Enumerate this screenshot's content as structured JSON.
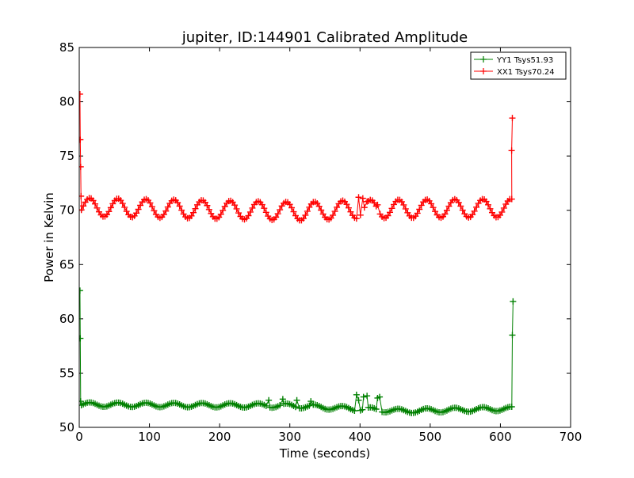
{
  "chart_data": {
    "type": "line",
    "title": "jupiter, ID:144901 Calibrated Amplitude",
    "xlabel": "Time (seconds)",
    "ylabel": "Power in Kelvin",
    "xlim": [
      0,
      700
    ],
    "ylim": [
      50,
      85
    ],
    "xticks": [
      0,
      100,
      200,
      300,
      400,
      500,
      600,
      700
    ],
    "xtick_labels": [
      "0",
      "100",
      "200",
      "300",
      "400",
      "500",
      "600",
      "700"
    ],
    "yticks": [
      50,
      55,
      60,
      65,
      70,
      75,
      80,
      85
    ],
    "ytick_labels": [
      "50",
      "55",
      "60",
      "65",
      "70",
      "75",
      "80",
      "85"
    ],
    "grid": false,
    "legend_position": "top-right",
    "series": [
      {
        "name": "YY1 Tsys51.93",
        "color": "#008000",
        "marker": "+",
        "baseline": 52.0,
        "oscillation_amplitude": 0.2,
        "oscillation_period": 40,
        "start_x": 3,
        "end_x": 618,
        "step": 2.8,
        "start_points": [
          [
            1,
            62.6
          ],
          [
            1.5,
            58.2
          ],
          [
            2,
            52.4
          ]
        ],
        "end_points": [
          [
            617,
            58.5
          ],
          [
            618,
            61.6
          ]
        ],
        "trend": [
          [
            0,
            52.1
          ],
          [
            300,
            52.0
          ],
          [
            460,
            51.5
          ],
          [
            600,
            51.7
          ]
        ],
        "spikes": [
          [
            270,
            52.5
          ],
          [
            290,
            52.6
          ],
          [
            310,
            52.5
          ],
          [
            330,
            52.4
          ],
          [
            395,
            53.0
          ],
          [
            398,
            52.5
          ],
          [
            405,
            52.8
          ],
          [
            410,
            52.9
          ],
          [
            425,
            52.7
          ],
          [
            428,
            52.8
          ]
        ]
      },
      {
        "name": "XX1 Tsys70.24",
        "color": "#ff0000",
        "marker": "+",
        "baseline": 70.2,
        "oscillation_amplitude": 0.85,
        "oscillation_period": 40,
        "start_x": 3,
        "end_x": 617,
        "step": 2.8,
        "start_points": [
          [
            1,
            80.7
          ],
          [
            1.5,
            76.5
          ],
          [
            2,
            74.0
          ],
          [
            2.5,
            71.3
          ]
        ],
        "end_points": [
          [
            616,
            75.5
          ],
          [
            617,
            78.5
          ]
        ],
        "trend": [
          [
            0,
            70.3
          ],
          [
            320,
            69.9
          ],
          [
            400,
            70.1
          ],
          [
            600,
            70.2
          ]
        ],
        "spikes": [
          [
            398,
            71.2
          ],
          [
            404,
            71.1
          ],
          [
            410,
            70.8
          ],
          [
            425,
            70.5
          ]
        ]
      }
    ]
  }
}
